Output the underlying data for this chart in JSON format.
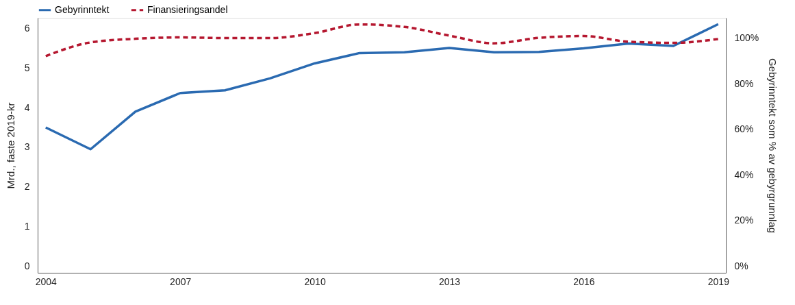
{
  "chart_data": {
    "type": "line",
    "ylabel": "Mrd., faste 2019-kr",
    "y2label": "Gebyrinntekt som % av gebyrgrunnlag",
    "x": [
      2004,
      2005,
      2006,
      2007,
      2008,
      2009,
      2010,
      2011,
      2012,
      2013,
      2014,
      2015,
      2016,
      2017,
      2018,
      2019
    ],
    "series": [
      {
        "name": "Gebyrinntekt",
        "color": "#2a6ab1",
        "line_style": "solid",
        "values": [
          3.5,
          2.95,
          3.9,
          4.37,
          4.44,
          4.74,
          5.12,
          5.38,
          5.4,
          5.51,
          5.4,
          5.41,
          5.5,
          5.62,
          5.56,
          6.11
        ]
      },
      {
        "name": "Finansieringsandel",
        "color": "#b5172f",
        "line_style": "dashed",
        "axis": "y2",
        "values": [
          92.2,
          98.2,
          99.8,
          100.4,
          100.1,
          100.1,
          102.3,
          106.1,
          105.0,
          101.2,
          97.8,
          100.2,
          101.0,
          98.5,
          98.0,
          99.7
        ]
      }
    ],
    "xlim": [
      2003.82,
      2019.17
    ],
    "xticks": [
      2004,
      2007,
      2010,
      2013,
      2016,
      2019
    ],
    "ylim": [
      -0.17,
      6.27
    ],
    "yticks": [
      0,
      1,
      2,
      3,
      4,
      5,
      6
    ],
    "y2lim": [
      -3,
      109
    ],
    "y2ticks": [
      {
        "value": 0,
        "label": "0%"
      },
      {
        "value": 20,
        "label": "20%"
      },
      {
        "value": 40,
        "label": "40%"
      },
      {
        "value": 60,
        "label": "60%"
      },
      {
        "value": 80,
        "label": "80%"
      },
      {
        "value": 100,
        "label": "100%"
      }
    ],
    "grid": false,
    "legend": "top left",
    "marker": "none"
  }
}
